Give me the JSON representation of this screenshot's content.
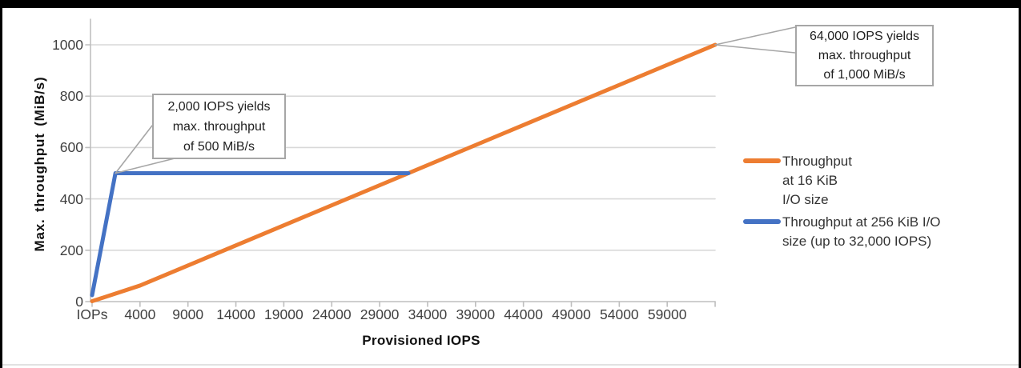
{
  "window": {
    "background": "#ffffff",
    "border_color": "#000000"
  },
  "chart_data": {
    "type": "line",
    "title": "",
    "xlabel": "Provisioned IOPS",
    "ylabel": "Max. throughput (MiB/s)",
    "grid": "horizontal",
    "legend_position": "right",
    "ylim": [
      0,
      1100
    ],
    "y_ticks": [
      "0",
      "200",
      "400",
      "600",
      "800",
      "1000"
    ],
    "y_tick_values": [
      0,
      200,
      400,
      600,
      800,
      1000
    ],
    "x_ticks": [
      {
        "label": "IOPs",
        "value": 100
      },
      {
        "label": "4000",
        "value": 4000
      },
      {
        "label": "9000",
        "value": 9000
      },
      {
        "label": "14000",
        "value": 14000
      },
      {
        "label": "19000",
        "value": 19000
      },
      {
        "label": "24000",
        "value": 24000
      },
      {
        "label": "29000",
        "value": 29000
      },
      {
        "label": "34000",
        "value": 34000
      },
      {
        "label": "39000",
        "value": 39000
      },
      {
        "label": "44000",
        "value": 44000
      },
      {
        "label": "49000",
        "value": 49000
      },
      {
        "label": "54000",
        "value": 54000
      },
      {
        "label": "59000",
        "value": 59000
      },
      {
        "label": "",
        "value": 64000
      }
    ],
    "series": [
      {
        "name": "Throughput at 16 KiB I/O size",
        "color": "#ED7D31",
        "points": [
          [
            100,
            1.5625
          ],
          [
            4000,
            62.5
          ],
          [
            64000,
            1000
          ]
        ]
      },
      {
        "name": "Throughput at 256 KiB I/O size (up to 32,000 IOPS)",
        "color": "#4472C4",
        "points": [
          [
            100,
            25
          ],
          [
            2000,
            500
          ],
          [
            32000,
            500
          ]
        ]
      }
    ],
    "annotations": [
      {
        "lines": [
          "2,000 IOPS yields",
          "max. throughput",
          "of 500 MiB/s"
        ],
        "anchor_x": 2000,
        "anchor_y": 500
      },
      {
        "lines": [
          "64,000 IOPS yields",
          "max. throughput",
          "of 1,000 MiB/s"
        ],
        "anchor_x": 64000,
        "anchor_y": 1000
      }
    ],
    "colors": {
      "gridline": "#D9D9D9",
      "axis": "#BFBFBF",
      "callout_border": "#A6A6A6",
      "tick_text": "#404040"
    }
  }
}
